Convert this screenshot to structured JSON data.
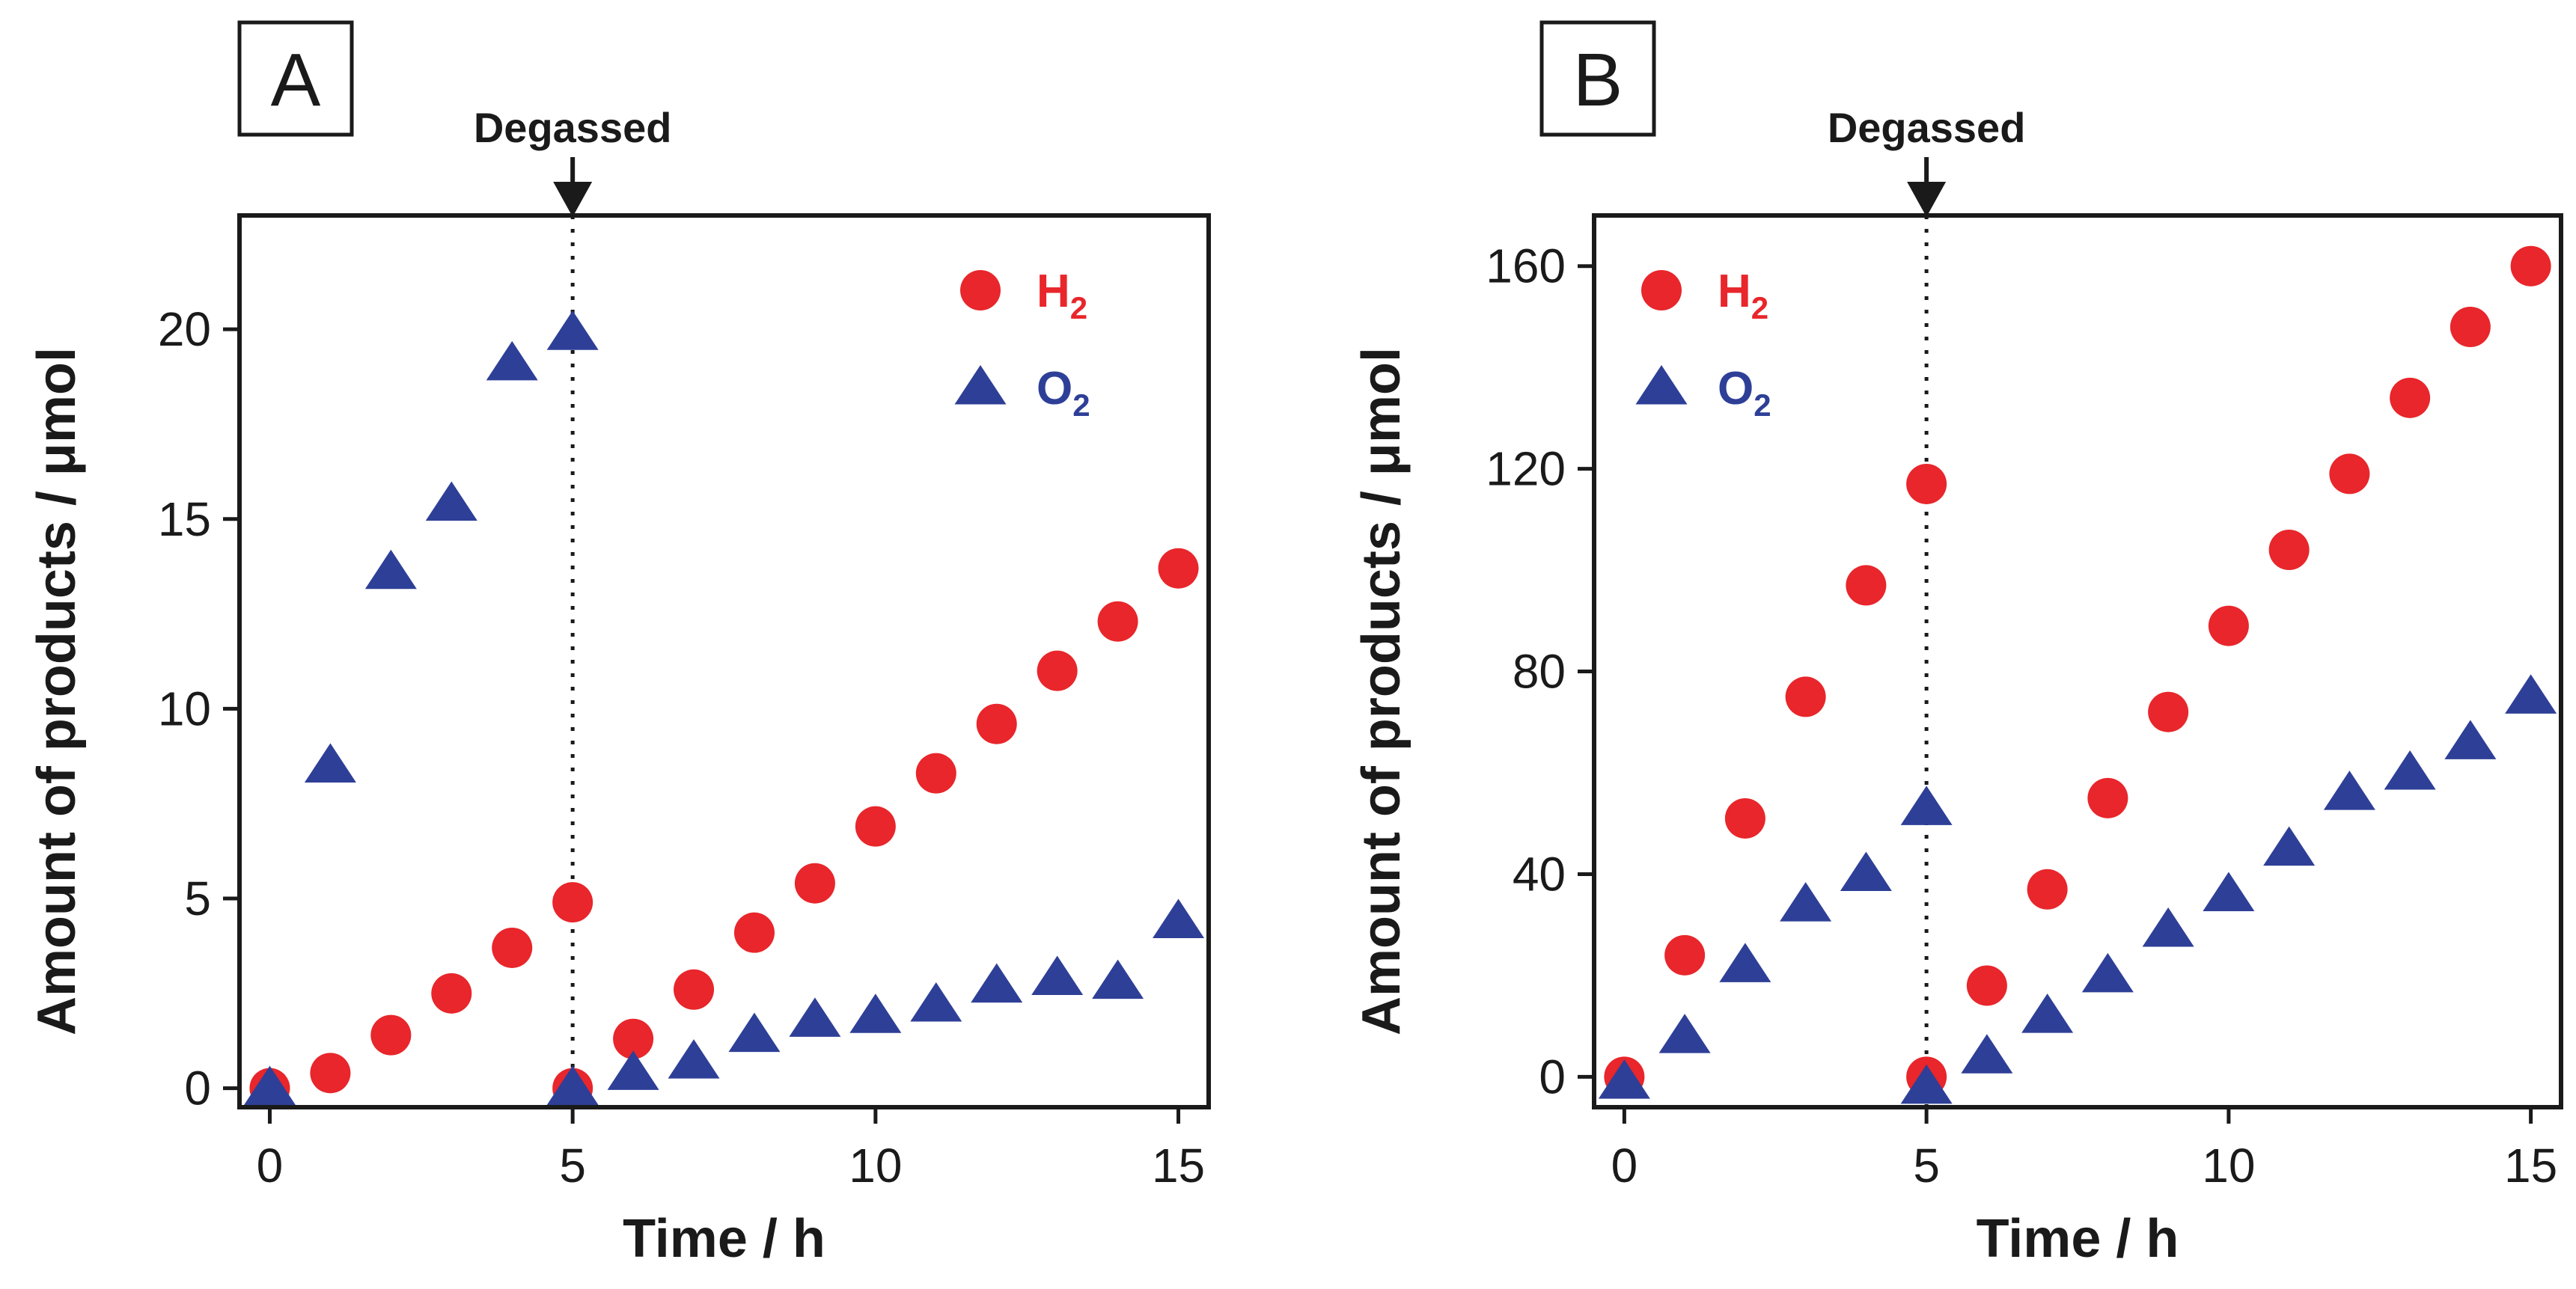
{
  "chart_data": [
    {
      "type": "scatter",
      "panel_label": "A",
      "annotation": "Degassed",
      "annotation_x": 5,
      "xlabel": "Time / h",
      "ylabel": "Amount of products / μmol",
      "xlim": [
        -0.5,
        15.5
      ],
      "ylim": [
        -0.5,
        23
      ],
      "xticks": [
        0,
        5,
        10,
        15
      ],
      "yticks": [
        0,
        5,
        10,
        15,
        20
      ],
      "legend_position": "top-right",
      "series": [
        {
          "name": "H2",
          "label": "H",
          "subscript": "2",
          "marker": "circle",
          "color": "#e8262b",
          "points": [
            [
              0,
              0
            ],
            [
              1,
              0.4
            ],
            [
              2,
              1.4
            ],
            [
              3,
              2.5
            ],
            [
              4,
              3.7
            ],
            [
              5,
              4.9
            ],
            [
              5,
              0
            ],
            [
              6,
              1.3
            ],
            [
              7,
              2.6
            ],
            [
              8,
              4.1
            ],
            [
              9,
              5.4
            ],
            [
              10,
              6.9
            ],
            [
              11,
              8.3
            ],
            [
              12,
              9.6
            ],
            [
              13,
              11.0
            ],
            [
              14,
              12.3
            ],
            [
              15,
              13.7
            ]
          ]
        },
        {
          "name": "O2",
          "label": "O",
          "subscript": "2",
          "marker": "triangle",
          "color": "#2e3f97",
          "points": [
            [
              0,
              0
            ],
            [
              1,
              8.5
            ],
            [
              2,
              13.6
            ],
            [
              3,
              15.4
            ],
            [
              4,
              19.1
            ],
            [
              5,
              19.9
            ],
            [
              5,
              0
            ],
            [
              6,
              0.4
            ],
            [
              7,
              0.7
            ],
            [
              8,
              1.4
            ],
            [
              9,
              1.8
            ],
            [
              10,
              1.9
            ],
            [
              11,
              2.2
            ],
            [
              12,
              2.7
            ],
            [
              13,
              2.9
            ],
            [
              14,
              2.8
            ],
            [
              15,
              4.4
            ]
          ]
        }
      ]
    },
    {
      "type": "scatter",
      "panel_label": "B",
      "annotation": "Degassed",
      "annotation_x": 5,
      "xlabel": "Time / h",
      "ylabel": "Amount of products / μmol",
      "xlim": [
        -0.5,
        15.5
      ],
      "ylim": [
        -6,
        170
      ],
      "xticks": [
        0,
        5,
        10,
        15
      ],
      "yticks": [
        0,
        40,
        80,
        120,
        160
      ],
      "legend_position": "top-left",
      "series": [
        {
          "name": "H2",
          "label": "H",
          "subscript": "2",
          "marker": "circle",
          "color": "#e8262b",
          "points": [
            [
              0,
              0
            ],
            [
              1,
              24
            ],
            [
              2,
              51
            ],
            [
              3,
              75
            ],
            [
              4,
              97
            ],
            [
              5,
              117
            ],
            [
              5,
              0
            ],
            [
              6,
              18
            ],
            [
              7,
              37
            ],
            [
              8,
              55
            ],
            [
              9,
              72
            ],
            [
              10,
              89
            ],
            [
              11,
              104
            ],
            [
              12,
              119
            ],
            [
              13,
              134
            ],
            [
              14,
              148
            ],
            [
              15,
              160
            ]
          ]
        },
        {
          "name": "O2",
          "label": "O",
          "subscript": "2",
          "marker": "triangle",
          "color": "#2e3f97",
          "points": [
            [
              0,
              -1
            ],
            [
              1,
              8
            ],
            [
              2,
              22
            ],
            [
              3,
              34
            ],
            [
              4,
              40
            ],
            [
              5,
              53
            ],
            [
              5,
              -2
            ],
            [
              6,
              4
            ],
            [
              7,
              12
            ],
            [
              8,
              20
            ],
            [
              9,
              29
            ],
            [
              10,
              36
            ],
            [
              11,
              45
            ],
            [
              12,
              56
            ],
            [
              13,
              60
            ],
            [
              14,
              66
            ],
            [
              15,
              75
            ]
          ]
        }
      ]
    }
  ]
}
